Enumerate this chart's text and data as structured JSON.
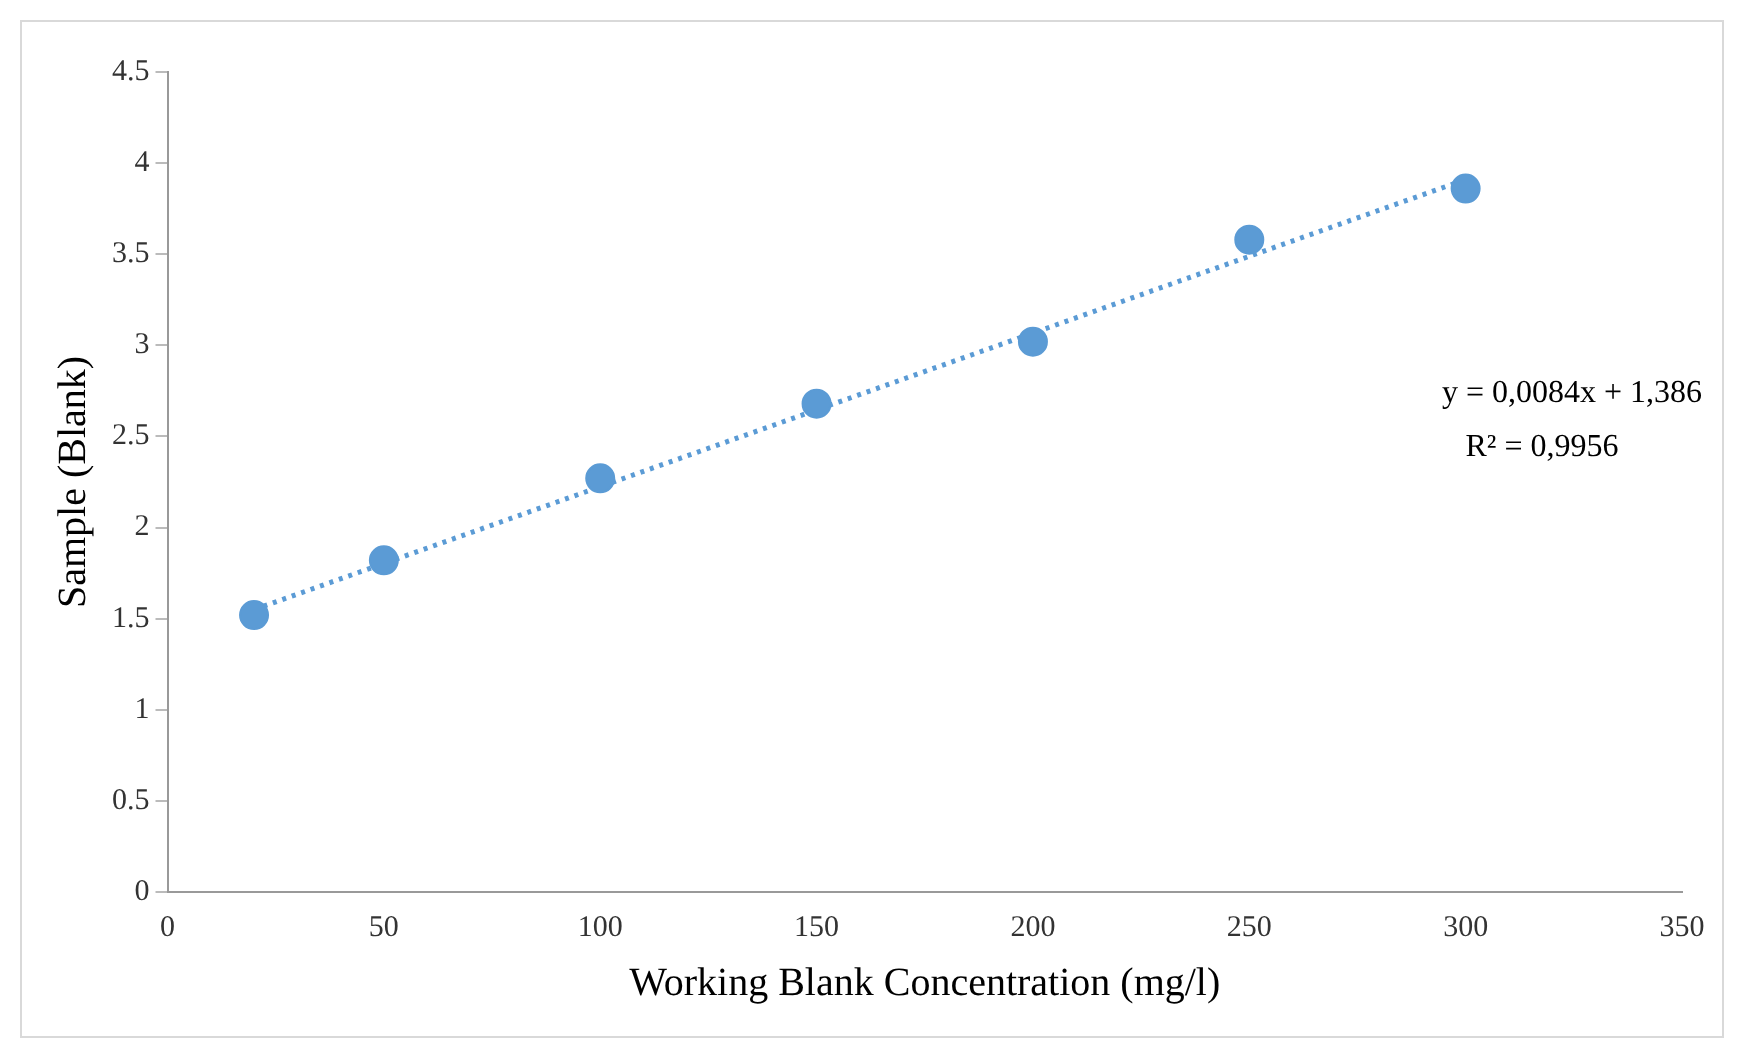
{
  "chart_data": {
    "type": "scatter",
    "xlabel": "Working Blank Concentration (mg/l)",
    "ylabel": "Sample (Blank)",
    "x": [
      20,
      50,
      100,
      150,
      200,
      250,
      300
    ],
    "series": [
      {
        "color": "#5b9bd5",
        "values": [
          1.52,
          1.82,
          2.27,
          2.68,
          3.02,
          3.58,
          3.86
        ],
        "marker": "circle"
      },
      {
        "type": "line",
        "color": "#5b9bd5",
        "x": [
          20,
          300
        ],
        "values": [
          1.55,
          3.91
        ],
        "line_style": "dotted",
        "marker": "none"
      }
    ],
    "xlim": [
      0,
      350
    ],
    "xticks": [
      0,
      50,
      100,
      150,
      200,
      250,
      300,
      350
    ],
    "ylim": [
      0,
      4.5
    ],
    "yticks": [
      0,
      0.5,
      1,
      1.5,
      2,
      2.5,
      3,
      3.5,
      4,
      4.5
    ],
    "grid": false,
    "legend": false,
    "annotations": [
      "y = 0,0084x + 1,386",
      "R² = 0,9956"
    ]
  }
}
